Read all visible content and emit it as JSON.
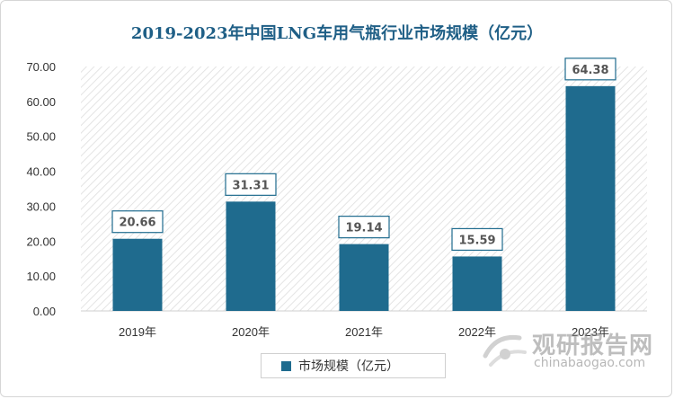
{
  "chart_data": {
    "type": "bar",
    "title": "2019-2023年中国LNG车用气瓶行业市场规模（亿元）",
    "categories": [
      "2019年",
      "2020年",
      "2021年",
      "2022年",
      "2023年"
    ],
    "series": [
      {
        "name": "市场规模（亿元）",
        "values": [
          20.66,
          31.31,
          19.14,
          15.59,
          64.38
        ]
      }
    ],
    "data_labels": [
      "20.66",
      "31.31",
      "19.14",
      "15.59",
      "64.38"
    ],
    "ylim": [
      0,
      70
    ],
    "yticks": [
      "0.00",
      "10.00",
      "20.00",
      "30.00",
      "40.00",
      "50.00",
      "60.00",
      "70.00"
    ],
    "grid": false,
    "legend": "bottom",
    "colors": {
      "bar": "#1f6b8e",
      "title": "#1f5f86",
      "label_box_border": "#1f6b8e"
    }
  },
  "watermark": {
    "cn": "观研报告网",
    "en": "chinabaogao.com"
  }
}
